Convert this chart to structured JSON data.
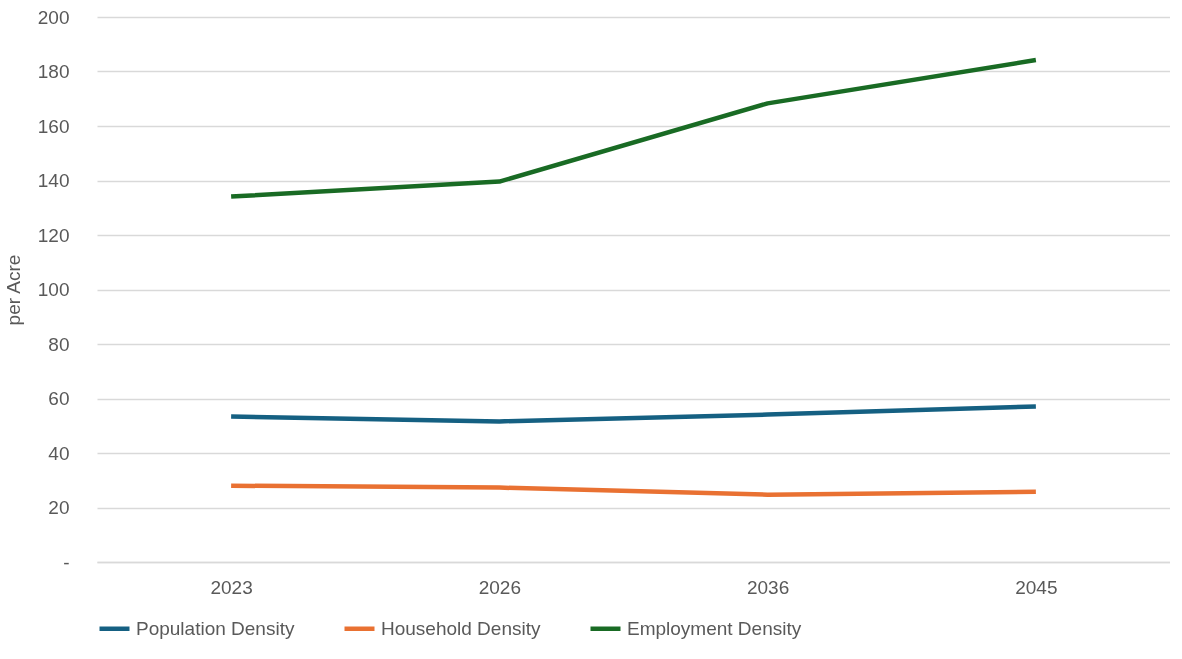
{
  "chart_data": {
    "type": "line",
    "ylabel": "per Acre",
    "categories": [
      "2023",
      "2026",
      "2036",
      "2045"
    ],
    "series": [
      {
        "name": "Population Density",
        "color": "#156082",
        "values": [
          53.4,
          51.6,
          54.1,
          57.1
        ]
      },
      {
        "name": "Household Density",
        "color": "#e97132",
        "values": [
          28.0,
          27.3,
          24.7,
          25.8
        ]
      },
      {
        "name": "Employment Density",
        "color": "#196b24",
        "values": [
          134.1,
          139.6,
          168.3,
          184.2
        ]
      }
    ],
    "ylim": [
      0,
      200
    ],
    "yticks": [
      {
        "value": 0,
        "label": "-"
      },
      20,
      40,
      60,
      80,
      100,
      120,
      140,
      160,
      180,
      200
    ],
    "grid": "y",
    "legend": "bottom",
    "marker": "none",
    "line_style": "solid"
  }
}
